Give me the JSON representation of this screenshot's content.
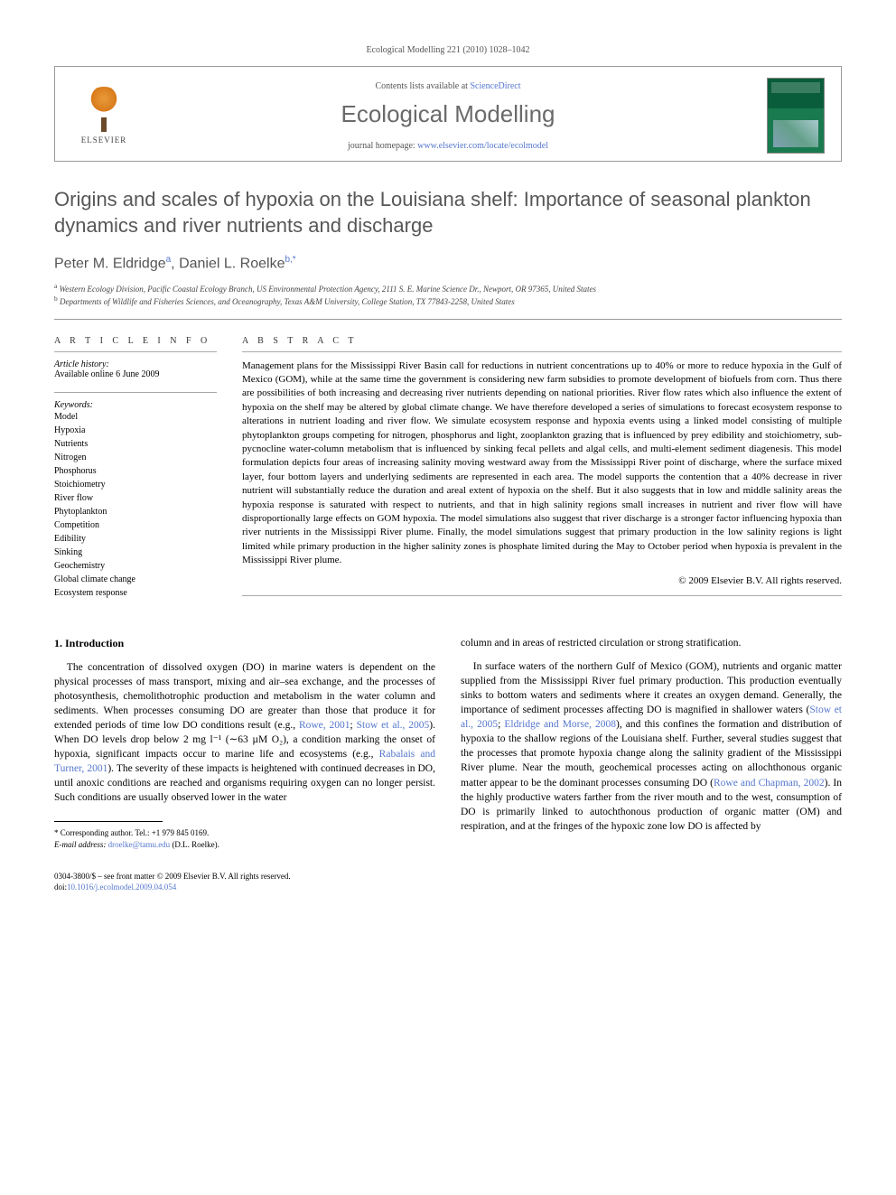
{
  "running_header": "Ecological Modelling 221 (2010) 1028–1042",
  "header": {
    "publisher": "ELSEVIER",
    "contents_prefix": "Contents lists available at ",
    "contents_link": "ScienceDirect",
    "journal_title": "Ecological Modelling",
    "homepage_prefix": "journal homepage: ",
    "homepage_url": "www.elsevier.com/locate/ecolmodel"
  },
  "article": {
    "title": "Origins and scales of hypoxia on the Louisiana shelf: Importance of seasonal plankton dynamics and river nutrients and discharge",
    "authors_html": "Peter M. Eldridge<sup>a</sup>, Daniel L. Roelke<sup>b,*</sup>",
    "affiliations": {
      "a": "Western Ecology Division, Pacific Coastal Ecology Branch, US Environmental Protection Agency, 2111 S. E. Marine Science Dr., Newport, OR 97365, United States",
      "b": "Departments of Wildlife and Fisheries Sciences, and Oceanography, Texas A&M University, College Station, TX 77843-2258, United States"
    }
  },
  "info": {
    "heading_info": "A R T I C L E   I N F O",
    "history_label": "Article history:",
    "history_value": "Available online 6 June 2009",
    "keywords_label": "Keywords:",
    "keywords": [
      "Model",
      "Hypoxia",
      "Nutrients",
      "Nitrogen",
      "Phosphorus",
      "Stoichiometry",
      "River flow",
      "Phytoplankton",
      "Competition",
      "Edibility",
      "Sinking",
      "Geochemistry",
      "Global climate change",
      "Ecosystem response"
    ]
  },
  "abstract": {
    "heading": "A B S T R A C T",
    "text": "Management plans for the Mississippi River Basin call for reductions in nutrient concentrations up to 40% or more to reduce hypoxia in the Gulf of Mexico (GOM), while at the same time the government is considering new farm subsidies to promote development of biofuels from corn. Thus there are possibilities of both increasing and decreasing river nutrients depending on national priorities. River flow rates which also influence the extent of hypoxia on the shelf may be altered by global climate change. We have therefore developed a series of simulations to forecast ecosystem response to alterations in nutrient loading and river flow. We simulate ecosystem response and hypoxia events using a linked model consisting of multiple phytoplankton groups competing for nitrogen, phosphorus and light, zooplankton grazing that is influenced by prey edibility and stoichiometry, sub-pycnocline water-column metabolism that is influenced by sinking fecal pellets and algal cells, and multi-element sediment diagenesis. This model formulation depicts four areas of increasing salinity moving westward away from the Mississippi River point of discharge, where the surface mixed layer, four bottom layers and underlying sediments are represented in each area. The model supports the contention that a 40% decrease in river nutrient will substantially reduce the duration and areal extent of hypoxia on the shelf. But it also suggests that in low and middle salinity areas the hypoxia response is saturated with respect to nutrients, and that in high salinity regions small increases in nutrient and river flow will have disproportionally large effects on GOM hypoxia. The model simulations also suggest that river discharge is a stronger factor influencing hypoxia than river nutrients in the Mississippi River plume. Finally, the model simulations suggest that primary production in the low salinity regions is light limited while primary production in the higher salinity zones is phosphate limited during the May to October period when hypoxia is prevalent in the Mississippi River plume.",
    "copyright": "© 2009 Elsevier B.V. All rights reserved."
  },
  "body": {
    "section_heading": "1. Introduction",
    "col1_p1": "The concentration of dissolved oxygen (DO) in marine waters is dependent on the physical processes of mass transport, mixing and air–sea exchange, and the processes of photosynthesis, chemolithotrophic production and metabolism in the water column and sediments. When processes consuming DO are greater than those that produce it for extended periods of time low DO conditions result (e.g., Rowe, 2001; Stow et al., 2005). When DO levels drop below 2 mg l⁻¹ (∼63 µM O₂), a condition marking the onset of hypoxia, significant impacts occur to marine life and ecosystems (e.g., Rabalais and Turner, 2001). The severity of these impacts is heightened with continued decreases in DO, until anoxic conditions are reached and organisms requiring oxygen can no longer persist. Such conditions are usually observed lower in the water",
    "col2_p1": "column and in areas of restricted circulation or strong stratification.",
    "col2_p2": "In surface waters of the northern Gulf of Mexico (GOM), nutrients and organic matter supplied from the Mississippi River fuel primary production. This production eventually sinks to bottom waters and sediments where it creates an oxygen demand. Generally, the importance of sediment processes affecting DO is magnified in shallower waters (Stow et al., 2005; Eldridge and Morse, 2008), and this confines the formation and distribution of hypoxia to the shallow regions of the Louisiana shelf. Further, several studies suggest that the processes that promote hypoxia change along the salinity gradient of the Mississippi River plume. Near the mouth, geochemical processes acting on allochthonous organic matter appear to be the dominant processes consuming DO (Rowe and Chapman, 2002). In the highly productive waters farther from the river mouth and to the west, consumption of DO is primarily linked to autochthonous production of organic matter (OM) and respiration, and at the fringes of the hypoxic zone low DO is affected by"
  },
  "footnotes": {
    "corresponding": "* Corresponding author. Tel.: +1 979 845 0169.",
    "email_label": "E-mail address: ",
    "email": "droelke@tamu.edu",
    "email_suffix": " (D.L. Roelke)."
  },
  "footer": {
    "line1": "0304-3800/$ – see front matter © 2009 Elsevier B.V. All rights reserved.",
    "doi_label": "doi:",
    "doi": "10.1016/j.ecolmodel.2009.04.054"
  },
  "links": {
    "refs_col1": [
      "Rowe, 2001",
      "Stow et al., 2005",
      "Rabalais and Turner, 2001"
    ],
    "refs_col2": [
      "Stow et al., 2005",
      "Eldridge and Morse, 2008",
      "Rowe and Chapman, 2002"
    ]
  },
  "colors": {
    "link": "#5577cc",
    "heading_gray": "#575757",
    "text": "#000000"
  }
}
